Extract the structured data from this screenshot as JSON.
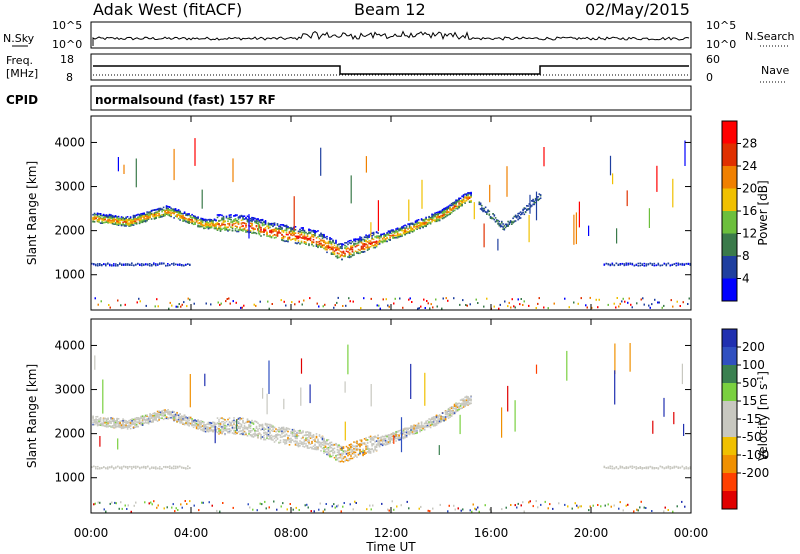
{
  "header": {
    "station": "Adak West (fitACF)",
    "beam": "Beam 12",
    "date": "02/May/2015"
  },
  "noise_panel": {
    "left_label": "N.Sky",
    "right_label": "N.Search",
    "left_ticks": [
      "10^5",
      "10^0"
    ],
    "right_ticks": [
      "10^5",
      "10^0"
    ]
  },
  "freq_panel": {
    "left_label_1": "Freq.",
    "left_label_2": "[MHz]",
    "right_label": "Nave",
    "left_ticks": [
      "18",
      "8"
    ],
    "right_ticks": [
      "60",
      "0"
    ]
  },
  "cpid_panel": {
    "label": "CPID",
    "text": "normalsound (fast) 157 RF"
  },
  "x_axis": {
    "label": "Time UT",
    "ticks": [
      "00:00",
      "04:00",
      "08:00",
      "12:00",
      "16:00",
      "20:00",
      "00:00"
    ]
  },
  "colors": {
    "power_scale": [
      "#0000ff",
      "#1f3f9f",
      "#3a7a4a",
      "#6cbf3c",
      "#f0c000",
      "#f08000",
      "#e03000",
      "#ff0000"
    ],
    "velocity_scale": [
      "#e00000",
      "#ff4000",
      "#f09000",
      "#f0c000",
      "#c8c8c0",
      "#c8c8c0",
      "#7ad040",
      "#3a8050",
      "#3050c0",
      "#2030b0"
    ]
  },
  "chart_data": [
    {
      "type": "heatmap",
      "name": "power",
      "ylabel": "Slant Range [km]",
      "xlabel": "",
      "ylim": [
        200,
        4600
      ],
      "y_ticks": [
        "1000",
        "2000",
        "3000",
        "4000"
      ],
      "colorbar_label": "Power [dB]",
      "colorbar_ticks": [
        "28",
        "24",
        "20",
        "16",
        "12",
        "8",
        "4"
      ],
      "features": [
        {
          "kind": "main_echo_band",
          "x_hours": [
            0.0,
            1.5,
            3.0,
            4.5,
            6.0,
            7.5,
            9.0,
            10.0,
            11.0,
            12.5,
            14.0,
            15.0
          ],
          "y_km": [
            2300,
            2200,
            2450,
            2150,
            2150,
            1950,
            1800,
            1500,
            1700,
            2000,
            2350,
            2750
          ]
        },
        {
          "kind": "low_band",
          "x_hours": [
            0.0,
            4.0
          ],
          "y_km": [
            1250,
            1250
          ]
        },
        {
          "kind": "low_band",
          "x_hours": [
            20.5,
            24.0
          ],
          "y_km": [
            1250,
            1250
          ]
        },
        {
          "kind": "arc",
          "x_hours": [
            15.5,
            16.5,
            17.2,
            18.0
          ],
          "y_km": [
            2600,
            2100,
            2400,
            2850
          ]
        }
      ]
    },
    {
      "type": "heatmap",
      "name": "velocity",
      "ylabel": "Slant Range [km]",
      "xlabel": "Time UT",
      "ylim": [
        200,
        4600
      ],
      "y_ticks": [
        "1000",
        "2000",
        "3000",
        "4000"
      ],
      "colorbar_label": "Velocity [m s^-1]",
      "colorbar_ticks": [
        "200",
        "100",
        "50",
        "15",
        "-15",
        "-50",
        "-100",
        "-200"
      ],
      "features": [
        {
          "kind": "main_echo_band",
          "x_hours": [
            0.0,
            1.5,
            3.0,
            4.5,
            6.0,
            7.5,
            9.0,
            10.0,
            11.0,
            12.5,
            14.0,
            15.0
          ],
          "y_km": [
            2300,
            2200,
            2450,
            2150,
            2150,
            1950,
            1800,
            1500,
            1700,
            2000,
            2350,
            2750
          ]
        },
        {
          "kind": "low_band",
          "x_hours": [
            0.0,
            4.0
          ],
          "y_km": [
            1250,
            1250
          ]
        },
        {
          "kind": "low_band",
          "x_hours": [
            20.5,
            24.0
          ],
          "y_km": [
            1250,
            1250
          ]
        }
      ]
    }
  ]
}
